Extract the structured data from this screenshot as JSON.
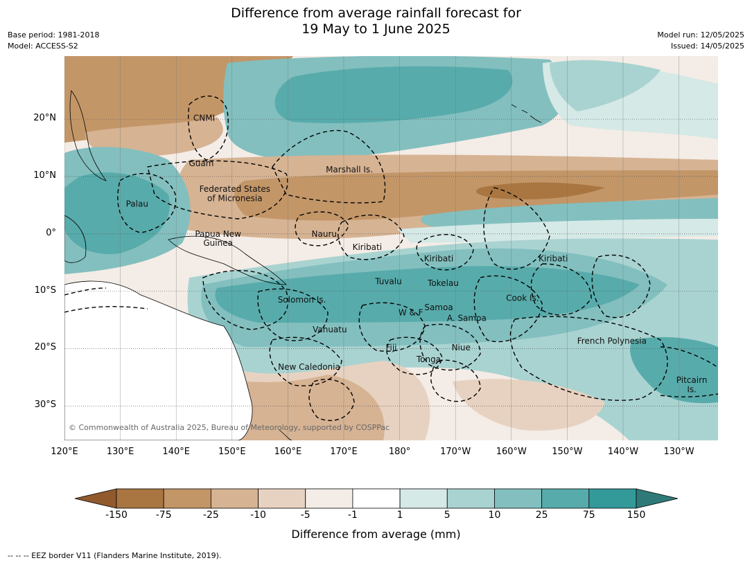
{
  "title": {
    "line1": "Difference from average rainfall forecast for",
    "line2": "19 May to 1 June 2025"
  },
  "meta": {
    "base_period": "Base period: 1981-2018",
    "model": "Model: ACCESS-S2",
    "model_run": "Model run: 12/05/2025",
    "issued": "Issued: 14/05/2025"
  },
  "map": {
    "lon_range": [
      120,
      237
    ],
    "lat_range": [
      -36,
      31
    ],
    "lat_ticks": [
      {
        "lat": 20,
        "label": "20°N"
      },
      {
        "lat": 10,
        "label": "10°N"
      },
      {
        "lat": 0,
        "label": "0°"
      },
      {
        "lat": -10,
        "label": "10°S"
      },
      {
        "lat": -20,
        "label": "20°S"
      },
      {
        "lat": -30,
        "label": "30°S"
      }
    ],
    "lon_ticks": [
      {
        "lon": 120,
        "label": "120°E"
      },
      {
        "lon": 130,
        "label": "130°E"
      },
      {
        "lon": 140,
        "label": "140°E"
      },
      {
        "lon": 150,
        "label": "150°E"
      },
      {
        "lon": 160,
        "label": "160°E"
      },
      {
        "lon": 170,
        "label": "170°E"
      },
      {
        "lon": 180,
        "label": "180°"
      },
      {
        "lon": 190,
        "label": "170°W"
      },
      {
        "lon": 200,
        "label": "160°W"
      },
      {
        "lon": 210,
        "label": "150°W"
      },
      {
        "lon": 220,
        "label": "140°W"
      },
      {
        "lon": 230,
        "label": "130°W"
      }
    ],
    "places": [
      {
        "name": "CNMI",
        "lon": 145.0,
        "lat": 20.2
      },
      {
        "name": "Guam",
        "lon": 144.5,
        "lat": 12.3
      },
      {
        "name": "Marshall Is.",
        "lon": 171.0,
        "lat": 11.2
      },
      {
        "name": "Federated States",
        "lon": 150.5,
        "lat": 7.8
      },
      {
        "name": "of Micronesia",
        "lon": 150.5,
        "lat": 6.2
      },
      {
        "name": "Palau",
        "lon": 133.0,
        "lat": 5.2
      },
      {
        "name": "Nauru",
        "lon": 166.5,
        "lat": 0.0
      },
      {
        "name": "Papua New",
        "lon": 147.5,
        "lat": 0.0
      },
      {
        "name": "Guinea",
        "lon": 147.5,
        "lat": -1.6
      },
      {
        "name": "Kiribati",
        "lon": 174.2,
        "lat": -2.3
      },
      {
        "name": "Kiribati",
        "lon": 187.0,
        "lat": -4.3
      },
      {
        "name": "Kiribati",
        "lon": 207.5,
        "lat": -4.3
      },
      {
        "name": "Tuvalu",
        "lon": 178.0,
        "lat": -8.3
      },
      {
        "name": "Tokelau",
        "lon": 187.8,
        "lat": -8.6
      },
      {
        "name": "Cook Is.",
        "lon": 202.0,
        "lat": -11.2
      },
      {
        "name": "Solomon Is.",
        "lon": 162.5,
        "lat": -11.5
      },
      {
        "name": "Samoa",
        "lon": 187.0,
        "lat": -12.8
      },
      {
        "name": "W & F",
        "lon": 182.0,
        "lat": -13.7
      },
      {
        "name": "A. Samoa",
        "lon": 192.0,
        "lat": -14.7
      },
      {
        "name": "Vanuatu",
        "lon": 167.5,
        "lat": -16.7
      },
      {
        "name": "French Polynesia",
        "lon": 218.0,
        "lat": -18.7
      },
      {
        "name": "Fiji",
        "lon": 178.5,
        "lat": -19.8
      },
      {
        "name": "Niue",
        "lon": 191.0,
        "lat": -19.8
      },
      {
        "name": "Tonga",
        "lon": 185.2,
        "lat": -21.9
      },
      {
        "name": "New Caledonia",
        "lon": 163.8,
        "lat": -23.2
      },
      {
        "name": "Pitcairn",
        "lon": 232.3,
        "lat": -25.5
      },
      {
        "name": "Is.",
        "lon": 232.3,
        "lat": -27.1
      }
    ],
    "copyright": "© Commonwealth of Australia 2025, Bureau of Meteorology, supported by COSPPac"
  },
  "colorbar": {
    "levels": [
      "-150",
      "-75",
      "-25",
      "-10",
      "-5",
      "-1",
      "1",
      "5",
      "10",
      "25",
      "75",
      "150"
    ],
    "colors": [
      "#a97641",
      "#c39668",
      "#d6b393",
      "#e7d2c1",
      "#f4ece6",
      "#ffffff",
      "#d5e9e7",
      "#a9d3d1",
      "#83bfbf",
      "#58abab",
      "#339a99"
    ],
    "extend_low_color": "#915a2d",
    "extend_high_color": "#2f7a78",
    "label": "Difference from average (mm)"
  },
  "footnote": "-- -- -- EEZ border V11 (Flanders Marine Institute, 2019)."
}
